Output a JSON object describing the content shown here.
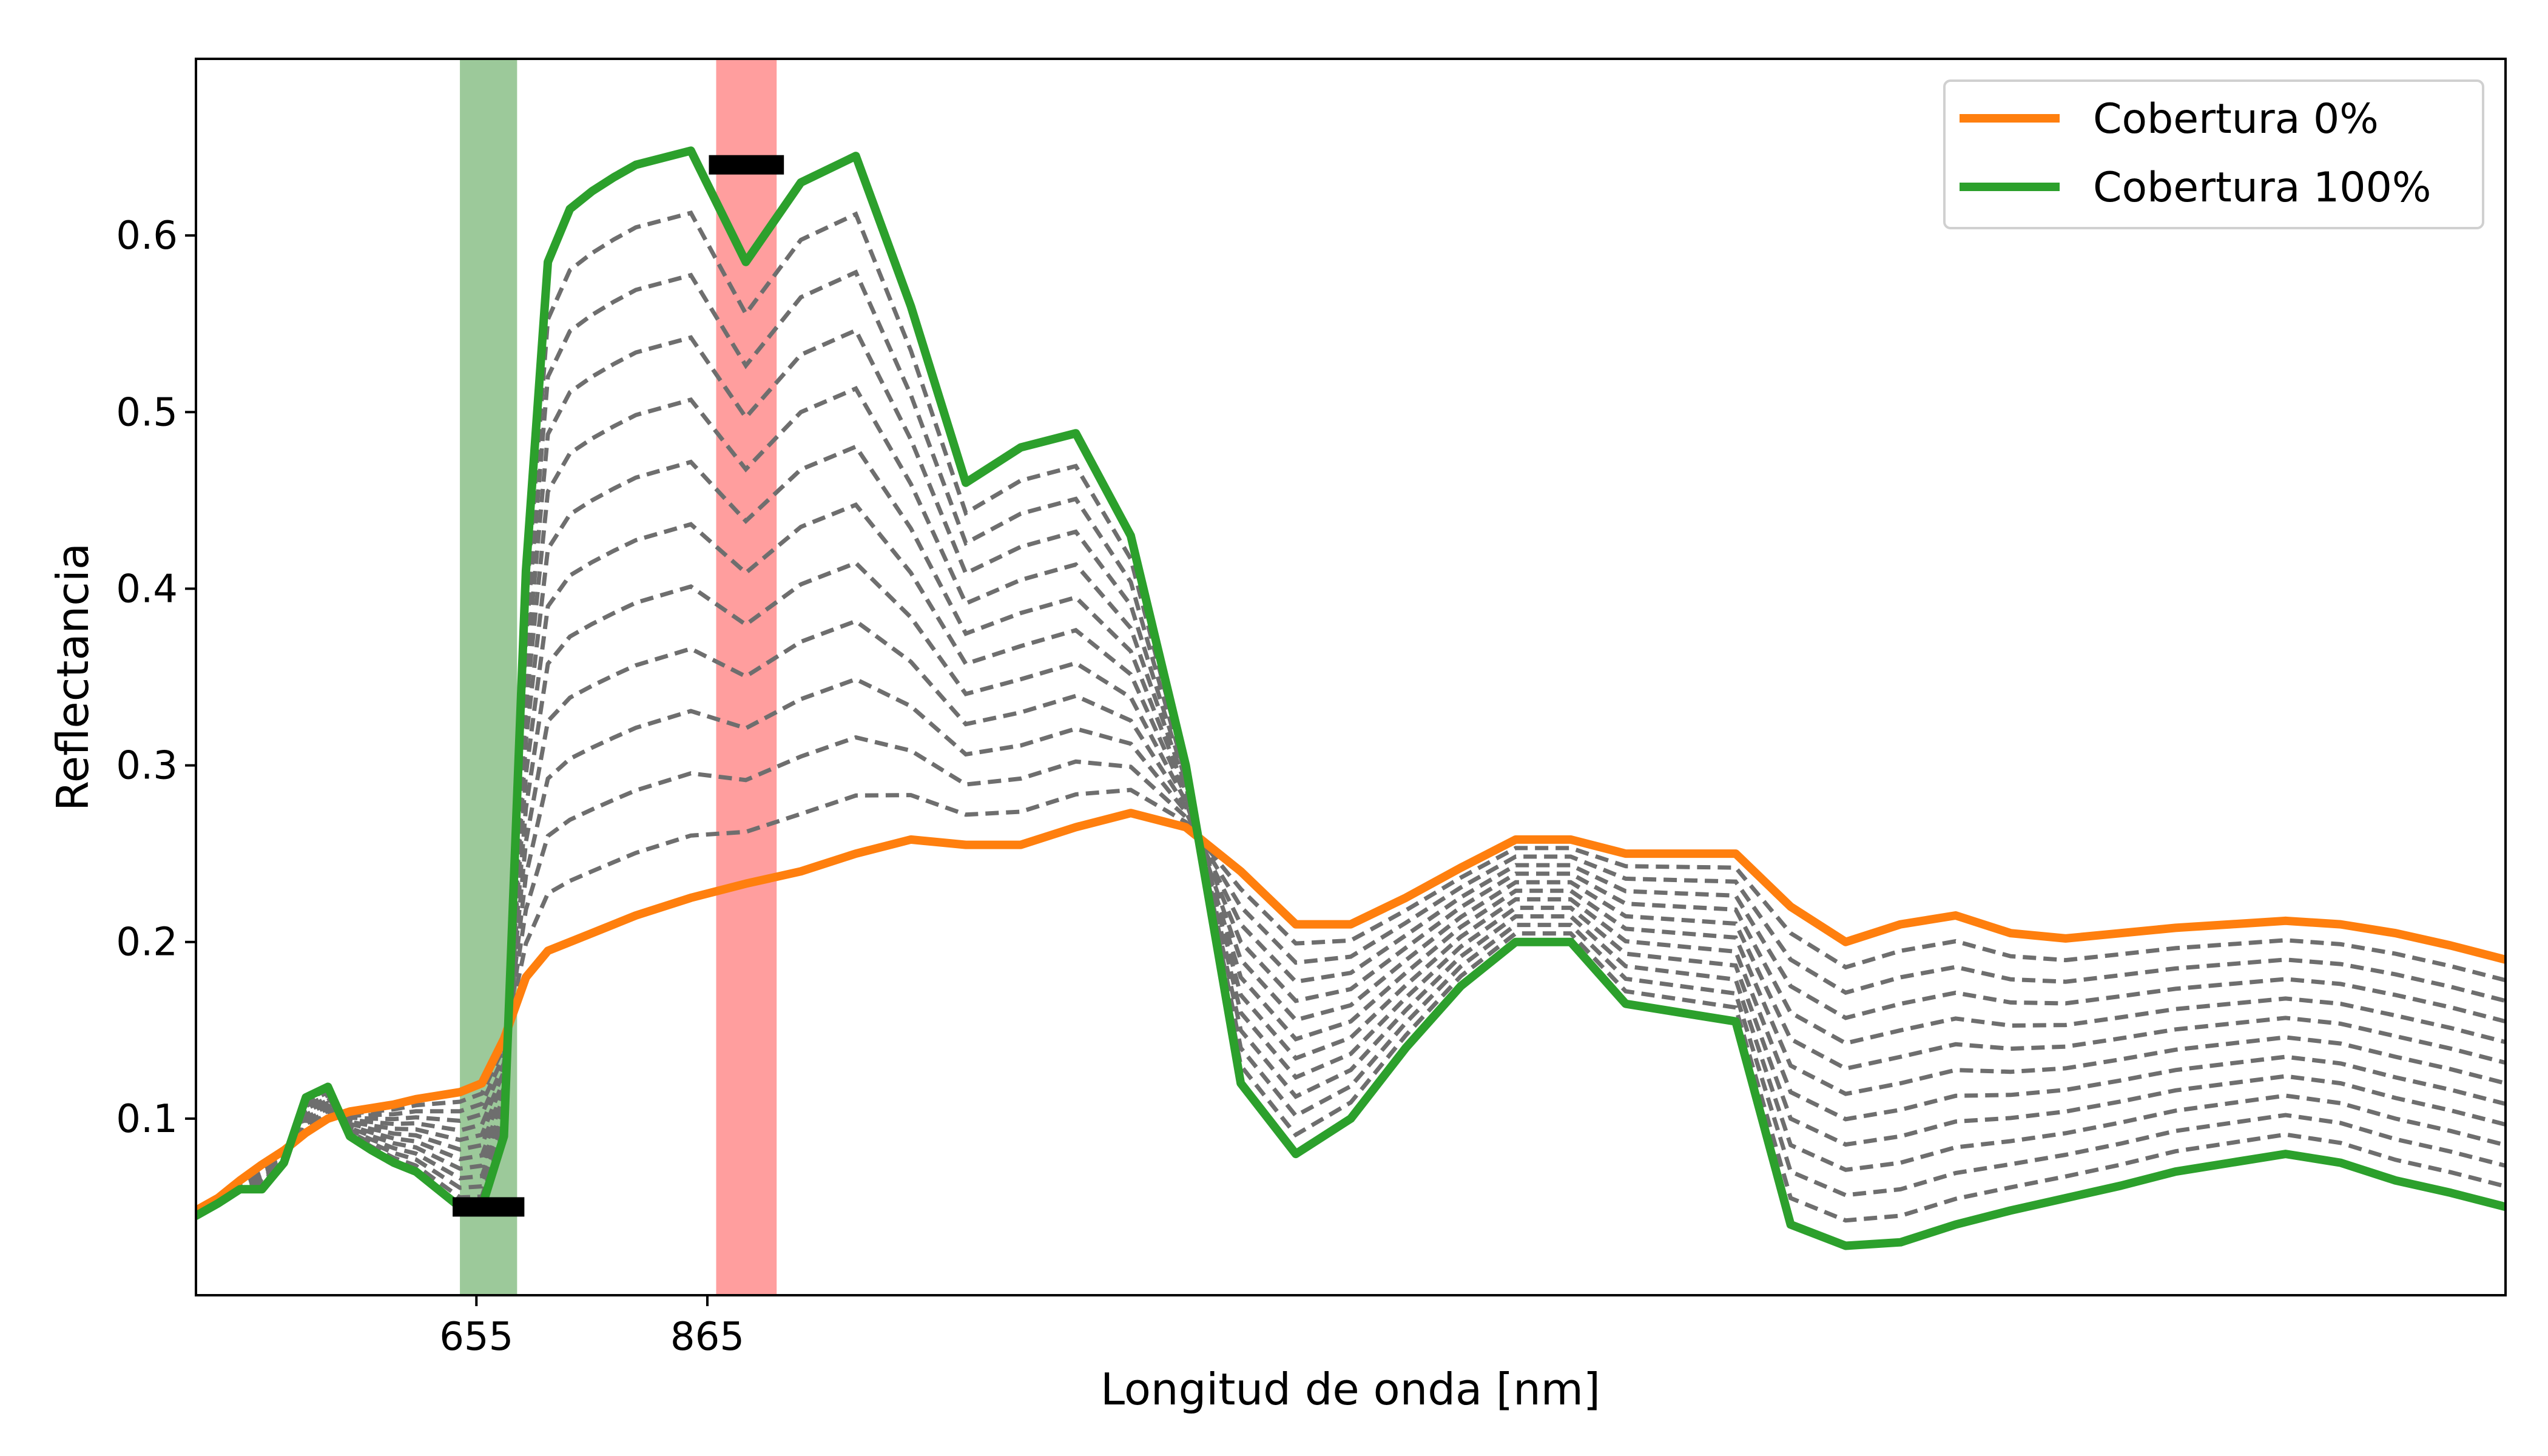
{
  "chart_data": {
    "type": "line",
    "title": "",
    "xlabel": "Longitud de onda [nm]",
    "ylabel": "Reflectancia",
    "xlim": [
      400,
      2500
    ],
    "ylim": [
      0,
      0.7
    ],
    "x_ticks": [
      655,
      865
    ],
    "y_ticks": [
      0.1,
      0.2,
      0.3,
      0.4,
      0.5,
      0.6
    ],
    "grid": false,
    "legend_position": "top-right",
    "bands": [
      {
        "center": 655,
        "x0": 640,
        "x1": 692,
        "color": "#9cc99a",
        "marker_y": 0.05
      },
      {
        "center": 865,
        "x0": 873,
        "x1": 928,
        "color": "#ff9e9e",
        "marker_y": 0.64
      }
    ],
    "x": [
      400,
      420,
      440,
      460,
      480,
      500,
      520,
      540,
      560,
      580,
      600,
      620,
      640,
      660,
      680,
      700,
      720,
      740,
      760,
      780,
      800,
      850,
      900,
      950,
      1000,
      1050,
      1100,
      1150,
      1200,
      1250,
      1300,
      1350,
      1400,
      1450,
      1500,
      1550,
      1600,
      1650,
      1700,
      1750,
      1800,
      1850,
      1900,
      1950,
      2000,
      2050,
      2100,
      2150,
      2200,
      2250,
      2300,
      2350,
      2400,
      2450,
      2500
    ],
    "series": [
      {
        "name": "Cobertura 0%",
        "color": "#ff7f0e",
        "values": [
          0.048,
          0.055,
          0.065,
          0.074,
          0.082,
          0.092,
          0.1,
          0.104,
          0.106,
          0.108,
          0.111,
          0.113,
          0.115,
          0.12,
          0.145,
          0.18,
          0.195,
          0.2,
          0.205,
          0.21,
          0.215,
          0.225,
          0.233,
          0.24,
          0.25,
          0.258,
          0.255,
          0.255,
          0.265,
          0.273,
          0.265,
          0.24,
          0.21,
          0.21,
          0.225,
          0.242,
          0.258,
          0.258,
          0.25,
          0.25,
          0.25,
          0.22,
          0.2,
          0.21,
          0.215,
          0.205,
          0.202,
          0.205,
          0.208,
          0.21,
          0.212,
          0.21,
          0.205,
          0.198,
          0.19
        ]
      },
      {
        "name": "Cobertura 100%",
        "color": "#2ca02c",
        "values": [
          0.045,
          0.052,
          0.06,
          0.06,
          0.075,
          0.112,
          0.118,
          0.09,
          0.082,
          0.075,
          0.07,
          0.06,
          0.05,
          0.05,
          0.09,
          0.41,
          0.585,
          0.615,
          0.625,
          0.633,
          0.64,
          0.648,
          0.585,
          0.63,
          0.645,
          0.56,
          0.46,
          0.48,
          0.488,
          0.43,
          0.3,
          0.12,
          0.08,
          0.1,
          0.14,
          0.175,
          0.2,
          0.2,
          0.165,
          0.16,
          0.155,
          0.04,
          0.028,
          0.03,
          0.04,
          0.048,
          0.055,
          0.062,
          0.07,
          0.075,
          0.08,
          0.075,
          0.065,
          0.058,
          0.05
        ]
      }
    ]
  },
  "legend": {
    "items": [
      {
        "label": "Cobertura 0%",
        "color": "#ff7f0e"
      },
      {
        "label": "Cobertura 100%",
        "color": "#2ca02c"
      }
    ]
  },
  "intermediate_curves": {
    "count": 11,
    "color": "#6e6e6e"
  }
}
